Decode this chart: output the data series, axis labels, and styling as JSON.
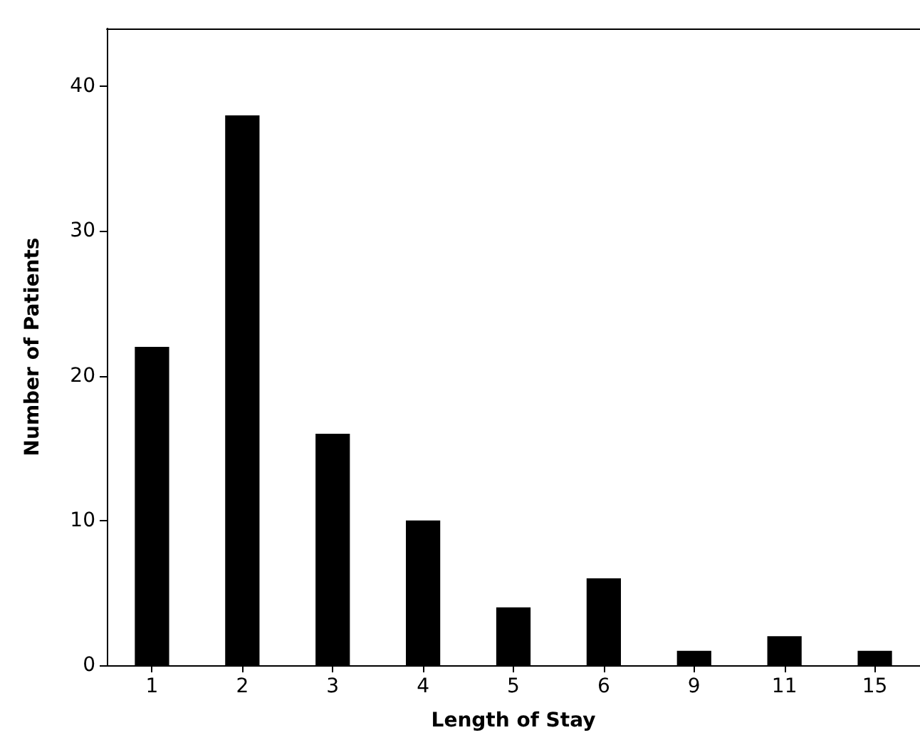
{
  "chart_data": {
    "type": "bar",
    "xlabel": "Length of Stay",
    "ylabel": "Number of Patients",
    "categories": [
      "1",
      "2",
      "3",
      "4",
      "5",
      "6",
      "9",
      "11",
      "15"
    ],
    "series": [
      {
        "color": "#000000",
        "values": [
          22,
          38,
          16,
          10,
          4,
          6,
          1,
          2,
          1
        ]
      }
    ],
    "ylim": [
      0,
      44
    ],
    "yticks": [
      0,
      10,
      20,
      30,
      40
    ],
    "grid": false
  }
}
